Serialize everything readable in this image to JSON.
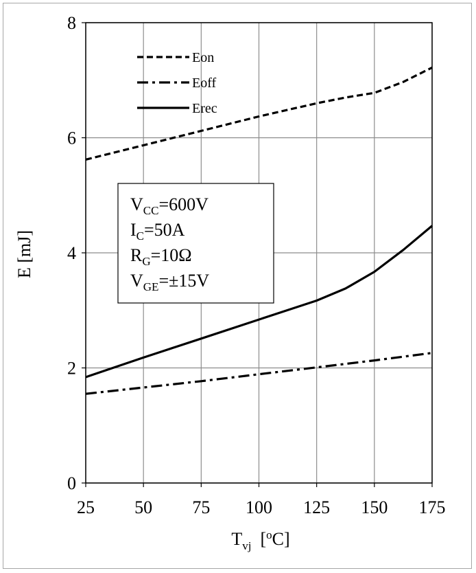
{
  "chart_data": {
    "type": "line",
    "xlabel": {
      "main": "T",
      "sub": "vj",
      "unit_pre": "  [",
      "unit_sup": "o",
      "unit_post": "C]"
    },
    "ylabel": "E [mJ]",
    "xlim": [
      25,
      175
    ],
    "ylim": [
      0,
      8
    ],
    "x_ticks": [
      "25",
      "50",
      "75",
      "100",
      "125",
      "150",
      "175"
    ],
    "y_ticks": [
      "0",
      "2",
      "4",
      "6",
      "8"
    ],
    "grid": true,
    "legend": "top-left",
    "series": [
      {
        "name": "Eon",
        "style": "dashed",
        "color": "#000000",
        "points": [
          [
            25,
            5.62
          ],
          [
            50,
            5.87
          ],
          [
            75,
            6.12
          ],
          [
            100,
            6.37
          ],
          [
            125,
            6.6
          ],
          [
            137.5,
            6.7
          ],
          [
            150,
            6.78
          ],
          [
            162.5,
            6.97
          ],
          [
            175,
            7.22
          ]
        ]
      },
      {
        "name": "Eoff",
        "style": "dashdot",
        "color": "#000000",
        "points": [
          [
            25,
            1.55
          ],
          [
            50,
            1.66
          ],
          [
            75,
            1.77
          ],
          [
            100,
            1.89
          ],
          [
            125,
            2.01
          ],
          [
            150,
            2.13
          ],
          [
            175,
            2.26
          ]
        ]
      },
      {
        "name": "Erec",
        "style": "solid",
        "color": "#000000",
        "points": [
          [
            25,
            1.84
          ],
          [
            50,
            2.18
          ],
          [
            75,
            2.51
          ],
          [
            100,
            2.84
          ],
          [
            125,
            3.17
          ],
          [
            137.5,
            3.38
          ],
          [
            150,
            3.67
          ],
          [
            162.5,
            4.05
          ],
          [
            175,
            4.47
          ]
        ]
      }
    ],
    "conditions": [
      {
        "main": "V",
        "sub": "CC",
        "rest": "=600V"
      },
      {
        "main": "I",
        "sub": "C",
        "rest": "=50A"
      },
      {
        "main": "R",
        "sub": "G",
        "rest": "=10Ω"
      },
      {
        "main": "V",
        "sub": "GE",
        "rest": "=±15V"
      }
    ]
  }
}
